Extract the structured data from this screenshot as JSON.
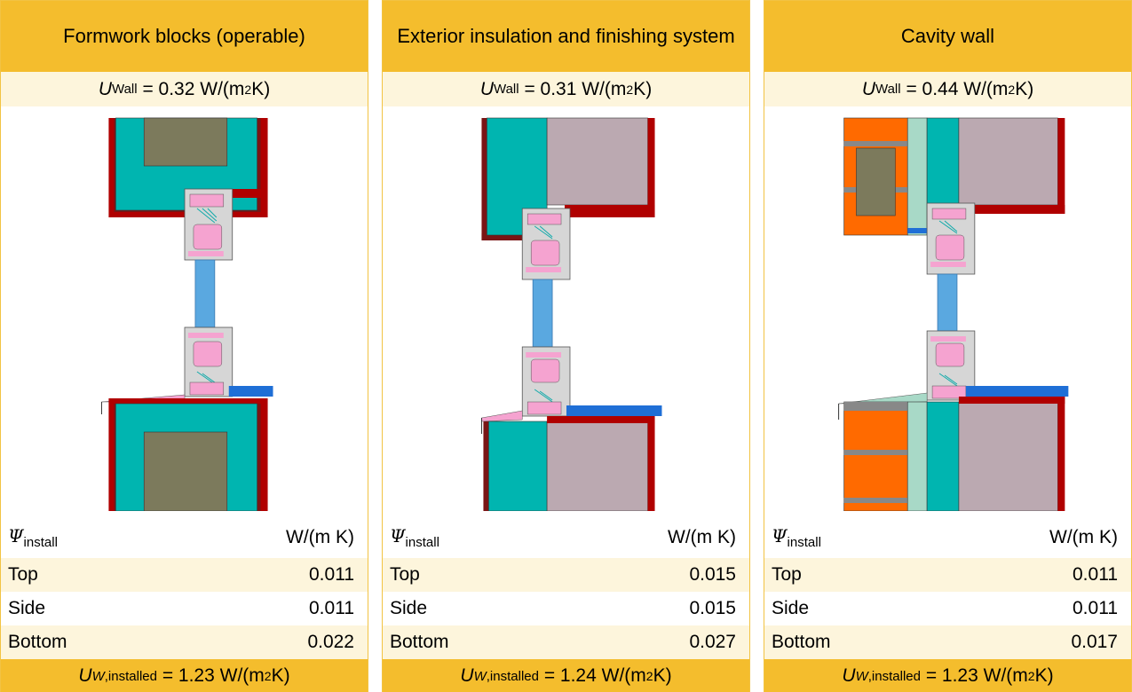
{
  "panels": [
    {
      "title": "Formwork blocks (operable)",
      "u_wall": {
        "symbol": "U",
        "sub": "Wall",
        "value": "= 0.32 W/(m",
        "exp": "2",
        "tail": " K)"
      },
      "psi_header": {
        "symbol": "Ψ",
        "sub": "install",
        "unit": "W/(m K)"
      },
      "rows": [
        {
          "label": "Top",
          "value": "0.011"
        },
        {
          "label": "Side",
          "value": "0.011"
        },
        {
          "label": "Bottom",
          "value": "0.022"
        }
      ],
      "u_installed": {
        "symbol": "U",
        "sub_italic": "W",
        "sub": ",installed",
        "value": "= 1.23 W/(m",
        "exp": "2",
        "tail": " K)"
      }
    },
    {
      "title": "Exterior insulation and finishing system",
      "u_wall": {
        "symbol": "U",
        "sub": "Wall",
        "value": "= 0.31 W/(m",
        "exp": "2",
        "tail": " K)"
      },
      "psi_header": {
        "symbol": "Ψ",
        "sub": "install",
        "unit": "W/(m K)"
      },
      "rows": [
        {
          "label": "Top",
          "value": "0.015"
        },
        {
          "label": "Side",
          "value": "0.015"
        },
        {
          "label": "Bottom",
          "value": "0.027"
        }
      ],
      "u_installed": {
        "symbol": "U",
        "sub_italic": "W",
        "sub": ",installed",
        "value": "= 1.24 W/(m",
        "exp": "2",
        "tail": " K)"
      }
    },
    {
      "title": "Cavity wall",
      "u_wall": {
        "symbol": "U",
        "sub": "Wall",
        "value": "= 0.44 W/(m",
        "exp": "2",
        "tail": " K)"
      },
      "psi_header": {
        "symbol": "Ψ",
        "sub": "install",
        "unit": "W/(m K)"
      },
      "rows": [
        {
          "label": "Top",
          "value": "0.011"
        },
        {
          "label": "Side",
          "value": "0.011"
        },
        {
          "label": "Bottom",
          "value": "0.017"
        }
      ],
      "u_installed": {
        "symbol": "U",
        "sub_italic": "W",
        "sub": ",installed",
        "value": "= 1.23 W/(m",
        "exp": "2",
        "tail": " K)"
      }
    }
  ],
  "colors": {
    "header": "#f4bd2d",
    "light_band": "#fdf5dc",
    "border": "#f2c343",
    "insulation_teal": "#00b5b0",
    "concrete_olive": "#7c7a5c",
    "masonry_mauve": "#bba9b1",
    "render_red": "#b00000",
    "glass_blue": "#5aa8e0",
    "gasket_pink": "#f5a3d0",
    "frame_grey": "#d6d6d6",
    "sill_blue": "#1f6fd6",
    "brick_orange": "#ff6a00",
    "cavity_mint": "#a8d9c7"
  }
}
